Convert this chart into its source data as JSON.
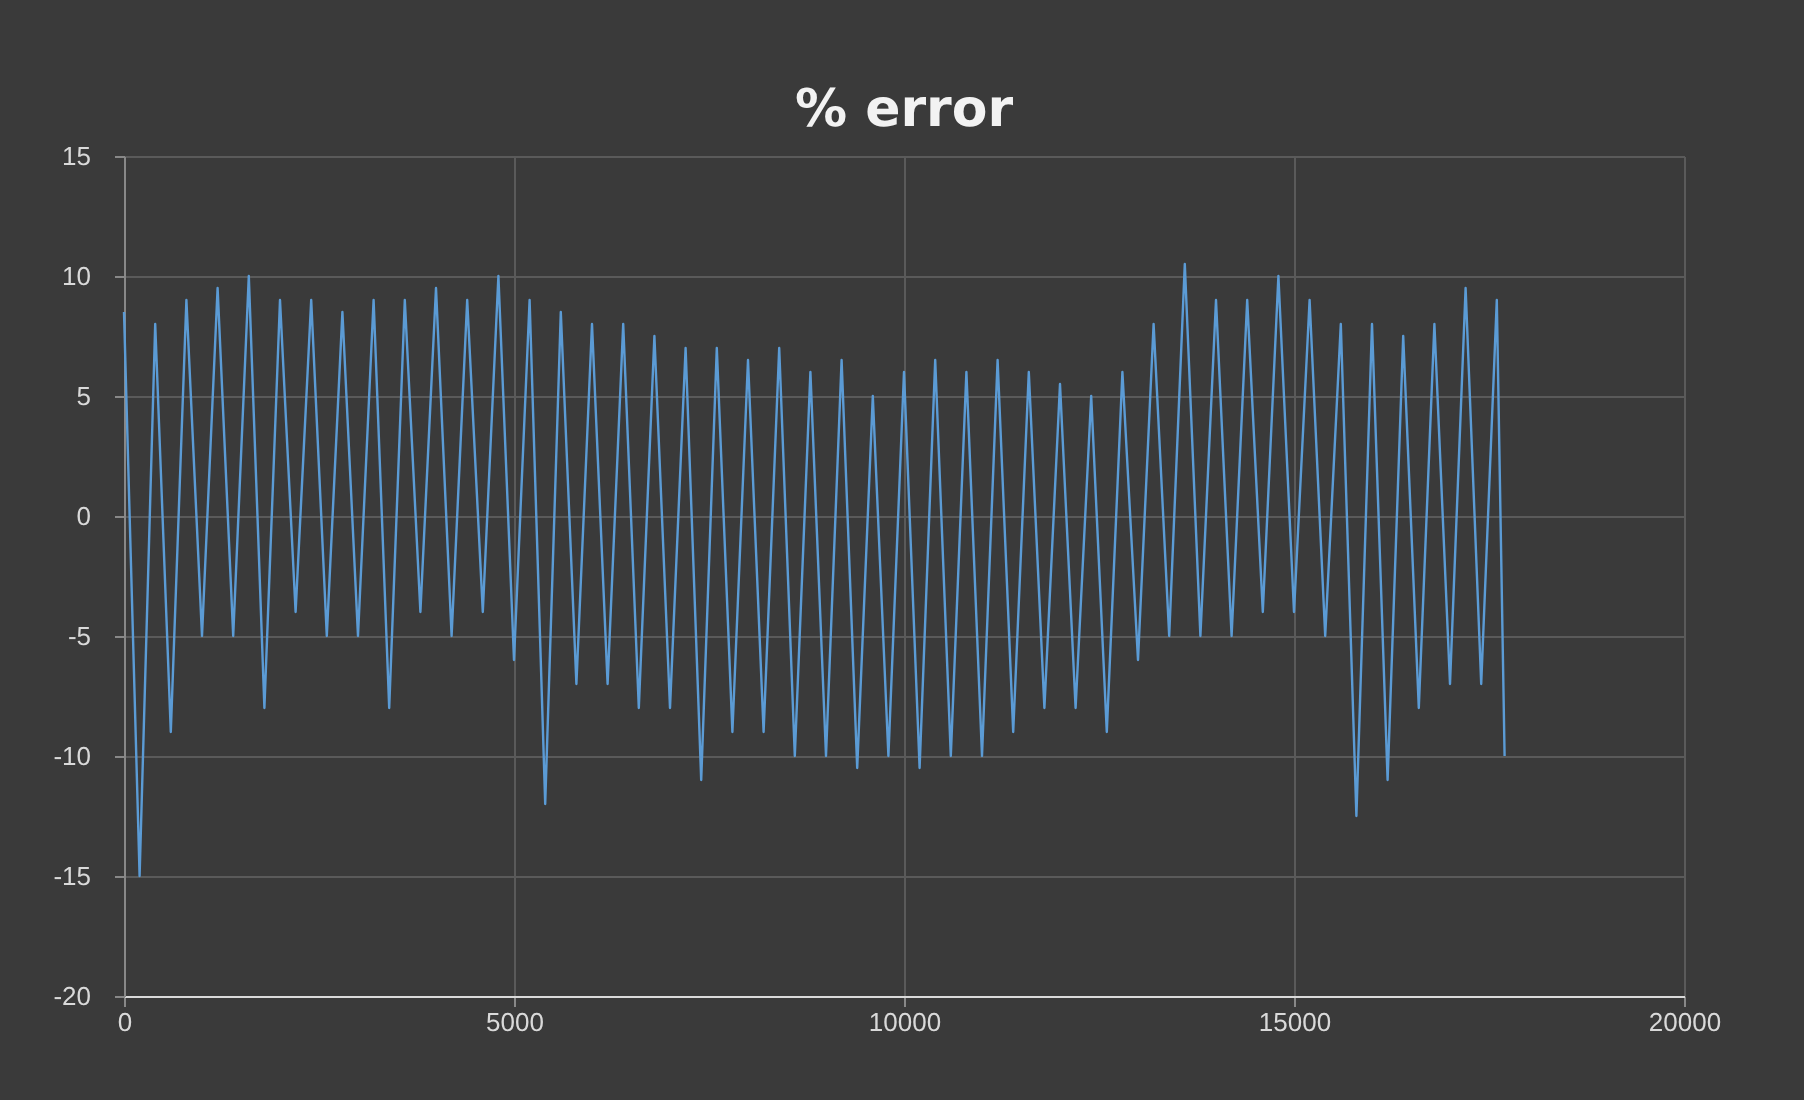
{
  "chart_data": {
    "type": "line",
    "title": "% error",
    "x": [
      0,
      200,
      400,
      600,
      800,
      1000,
      1200,
      1400,
      1600,
      1800,
      2000,
      2200,
      2400,
      2600,
      2800,
      3000,
      3200,
      3400,
      3600,
      3800,
      4000,
      4200,
      4400,
      4600,
      4800,
      5000,
      5200,
      5400,
      5600,
      5800,
      6000,
      6200,
      6400,
      6600,
      6800,
      7000,
      7200,
      7400,
      7600,
      7800,
      8000,
      8200,
      8400,
      8600,
      8800,
      9000,
      9200,
      9400,
      9600,
      9800,
      10000,
      10200,
      10400,
      10600,
      10800,
      11000,
      11200,
      11400,
      11600,
      11800,
      12000,
      12200,
      12400,
      12600,
      12800,
      13000,
      13200,
      13400,
      13600,
      13800,
      14000,
      14200,
      14400,
      14600,
      14800,
      15000,
      15200,
      15400,
      15600,
      15800,
      16000,
      16200,
      16400,
      16600,
      16800,
      17000,
      17200,
      17400,
      17600,
      17700
    ],
    "series": [
      {
        "color": "#5b9bd5",
        "values": [
          8.5,
          -15,
          8,
          -9,
          9,
          -5,
          9.5,
          -5,
          10,
          -8,
          9,
          -4,
          9,
          -5,
          8.5,
          -5,
          9,
          -8,
          9,
          -4,
          9.5,
          -5,
          9,
          -4,
          10,
          -6,
          9,
          -12,
          8.5,
          -7,
          8,
          -7,
          8,
          -8,
          7.5,
          -8,
          7,
          -11,
          7,
          -9,
          6.5,
          -9,
          7,
          -10,
          6,
          -10,
          6.5,
          -10.5,
          5,
          -10,
          6,
          -10.5,
          6.5,
          -10,
          6,
          -10,
          6.5,
          -9,
          6,
          -8,
          5.5,
          -8,
          5,
          -9,
          6,
          -6,
          8,
          -5,
          10.5,
          -5,
          9,
          -5,
          9,
          -4,
          10,
          -4,
          9,
          -5,
          8,
          -12.5,
          8,
          -11,
          7.5,
          -8,
          8,
          -7,
          9.5,
          -7,
          9,
          -10
        ]
      }
    ],
    "xlim": [
      0,
      20000
    ],
    "xticks": [
      0,
      5000,
      10000,
      15000,
      20000
    ],
    "ylim": [
      -20,
      15
    ],
    "yticks": [
      -20,
      -15,
      -10,
      -5,
      0,
      5,
      10,
      15
    ],
    "grid": true
  }
}
